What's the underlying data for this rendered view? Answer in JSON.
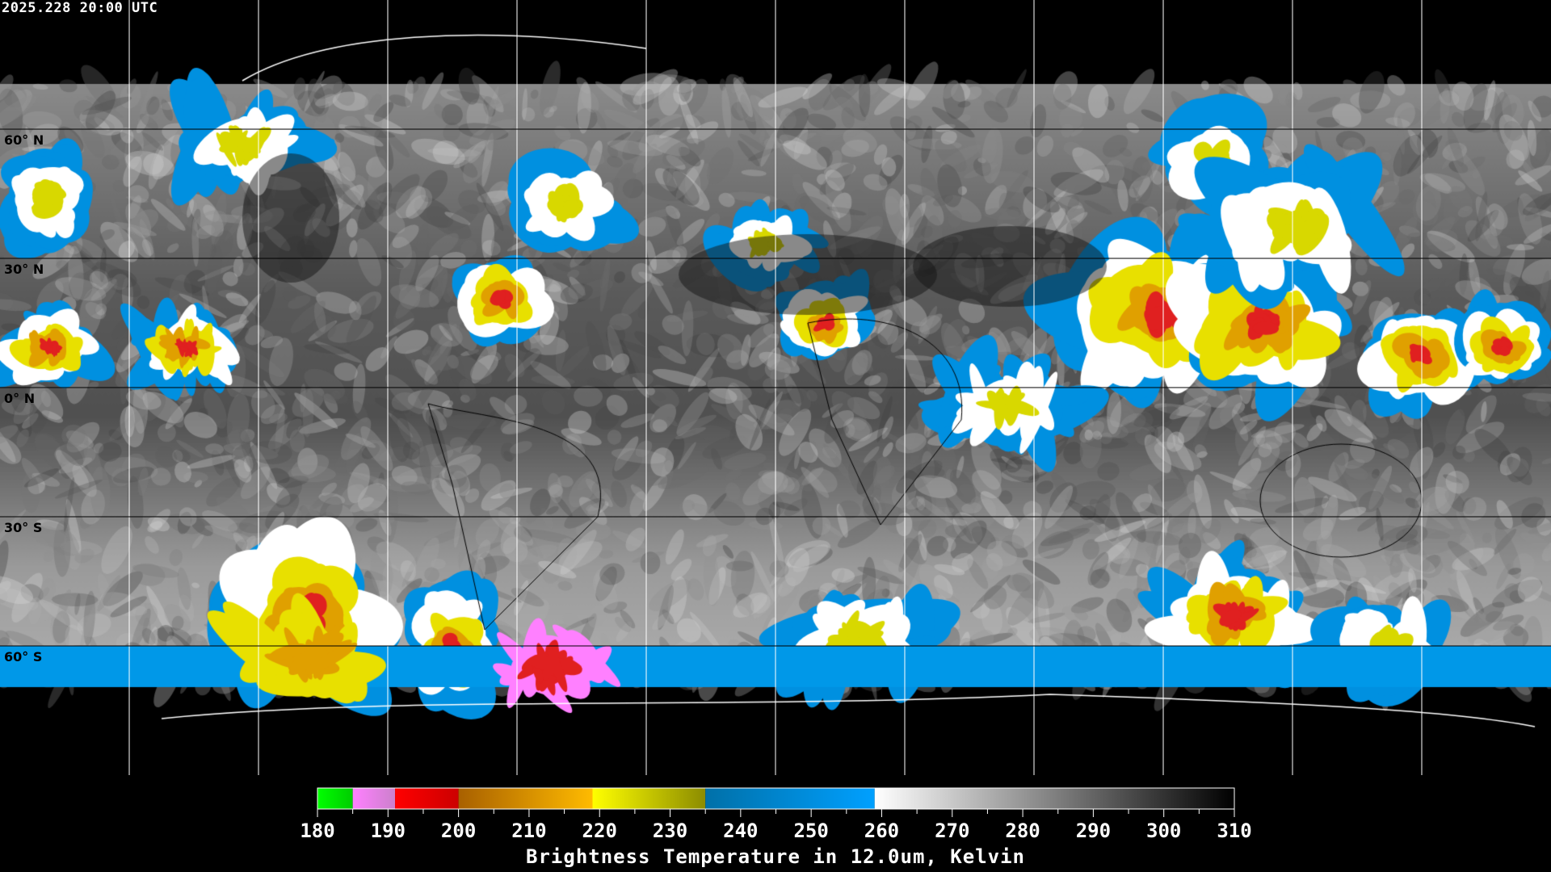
{
  "header": {
    "timestamp": "2025.228 20:00 UTC"
  },
  "map": {
    "projection": "equirectangular",
    "lat_labels": [
      "60° N",
      "30° N",
      "0° N",
      "30° S",
      "60° S"
    ],
    "lat_values": [
      60,
      30,
      0,
      -30,
      -60
    ],
    "grid_spacing_degrees": 30,
    "coastline_color": "#ffffff",
    "grid_color": "#ffffff"
  },
  "colorbar": {
    "title": "Brightness Temperature in 12.0um, Kelvin",
    "min": 180,
    "max": 310,
    "tick_labels": [
      "180",
      "190",
      "200",
      "210",
      "220",
      "230",
      "240",
      "250",
      "260",
      "270",
      "280",
      "290",
      "300",
      "310"
    ],
    "minor_tick_step": 5,
    "segments": [
      {
        "from": 180,
        "to": 185,
        "start": "#00ff00",
        "end": "#00cc00"
      },
      {
        "from": 185,
        "to": 191,
        "start": "#ff80ff",
        "end": "#cc80cc"
      },
      {
        "from": 191,
        "to": 200,
        "start": "#ff0000",
        "end": "#cc0000"
      },
      {
        "from": 200,
        "to": 219,
        "start": "#a86000",
        "end": "#ffbb00"
      },
      {
        "from": 219,
        "to": 235,
        "start": "#ffff00",
        "end": "#8c8c00"
      },
      {
        "from": 235,
        "to": 259,
        "start": "#0070a8",
        "end": "#00a0ff"
      },
      {
        "from": 259,
        "to": 310,
        "start": "#ffffff",
        "end": "#000000"
      }
    ]
  }
}
